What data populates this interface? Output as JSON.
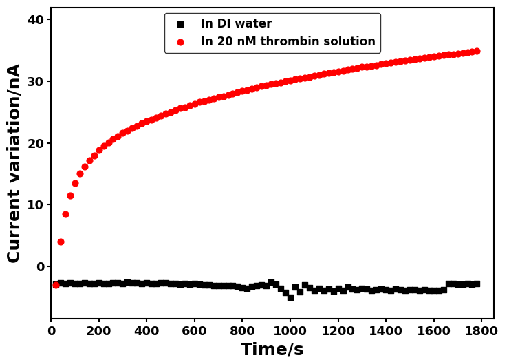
{
  "chart_data": {
    "type": "scatter",
    "xlabel": "Time/s",
    "ylabel": "Current variation/nA",
    "x": [
      20,
      40,
      60,
      80,
      100,
      120,
      140,
      160,
      180,
      200,
      220,
      240,
      260,
      280,
      300,
      320,
      340,
      360,
      380,
      400,
      420,
      440,
      460,
      480,
      500,
      520,
      540,
      560,
      580,
      600,
      620,
      640,
      660,
      680,
      700,
      720,
      740,
      760,
      780,
      800,
      820,
      840,
      860,
      880,
      900,
      920,
      940,
      960,
      980,
      1000,
      1020,
      1040,
      1060,
      1080,
      1100,
      1120,
      1140,
      1160,
      1180,
      1200,
      1220,
      1240,
      1260,
      1280,
      1300,
      1320,
      1340,
      1360,
      1380,
      1400,
      1420,
      1440,
      1460,
      1480,
      1500,
      1520,
      1540,
      1560,
      1580,
      1600,
      1620,
      1640,
      1660,
      1680,
      1700,
      1720,
      1740,
      1760,
      1780
    ],
    "series": [
      {
        "name": "In DI water",
        "color": "#000000",
        "marker": "square",
        "values": [
          -2.9,
          -2.7,
          -2.8,
          -2.7,
          -2.8,
          -2.8,
          -2.7,
          -2.8,
          -2.8,
          -2.7,
          -2.8,
          -2.8,
          -2.7,
          -2.7,
          -2.8,
          -2.6,
          -2.7,
          -2.7,
          -2.8,
          -2.7,
          -2.8,
          -2.8,
          -2.7,
          -2.7,
          -2.8,
          -2.8,
          -2.9,
          -2.8,
          -2.9,
          -2.8,
          -2.9,
          -3.0,
          -3.0,
          -3.1,
          -3.1,
          -3.2,
          -3.1,
          -3.2,
          -3.3,
          -3.5,
          -3.6,
          -3.3,
          -3.2,
          -3.0,
          -3.1,
          -2.6,
          -2.9,
          -3.6,
          -4.3,
          -5.0,
          -3.4,
          -4.2,
          -3.0,
          -3.5,
          -3.9,
          -3.6,
          -3.9,
          -3.7,
          -4.0,
          -3.6,
          -3.9,
          -3.4,
          -3.7,
          -3.8,
          -3.6,
          -3.7,
          -3.9,
          -3.8,
          -3.7,
          -3.8,
          -3.9,
          -3.7,
          -3.8,
          -3.9,
          -3.8,
          -3.8,
          -3.9,
          -3.8,
          -3.9,
          -3.9,
          -3.9,
          -3.8,
          -2.8,
          -2.8,
          -2.9,
          -2.9,
          -2.8,
          -2.9,
          -2.8
        ]
      },
      {
        "name": "In 20 nM thrombin solution",
        "color": "#ff0000",
        "marker": "circle",
        "values": [
          -3,
          4,
          8.5,
          11.5,
          13.5,
          15,
          16.2,
          17.2,
          18,
          18.8,
          19.5,
          20.1,
          20.6,
          21.1,
          21.6,
          22,
          22.4,
          22.8,
          23.2,
          23.5,
          23.8,
          24.1,
          24.4,
          24.7,
          25,
          25.3,
          25.6,
          25.8,
          26.1,
          26.3,
          26.6,
          26.8,
          27,
          27.2,
          27.4,
          27.6,
          27.8,
          28,
          28.2,
          28.4,
          28.6,
          28.8,
          29,
          29.2,
          29.3,
          29.5,
          29.7,
          29.8,
          30,
          30.1,
          30.3,
          30.4,
          30.6,
          30.7,
          30.9,
          31,
          31.2,
          31.3,
          31.5,
          31.6,
          31.7,
          31.9,
          32,
          32.1,
          32.3,
          32.4,
          32.5,
          32.6,
          32.8,
          32.9,
          33,
          33.1,
          33.2,
          33.4,
          33.5,
          33.6,
          33.7,
          33.8,
          33.9,
          34,
          34.1,
          34.2,
          34.3,
          34.4,
          34.5,
          34.6,
          34.7,
          34.8,
          34.9
        ]
      }
    ],
    "xlim": [
      0,
      1850
    ],
    "xticks": [
      0,
      200,
      400,
      600,
      800,
      1000,
      1200,
      1400,
      1600,
      1800
    ],
    "ylim": [
      -8.5,
      42
    ],
    "yticks": [
      0,
      10,
      20,
      30,
      40
    ],
    "legend": "upper center",
    "grid": false
  }
}
